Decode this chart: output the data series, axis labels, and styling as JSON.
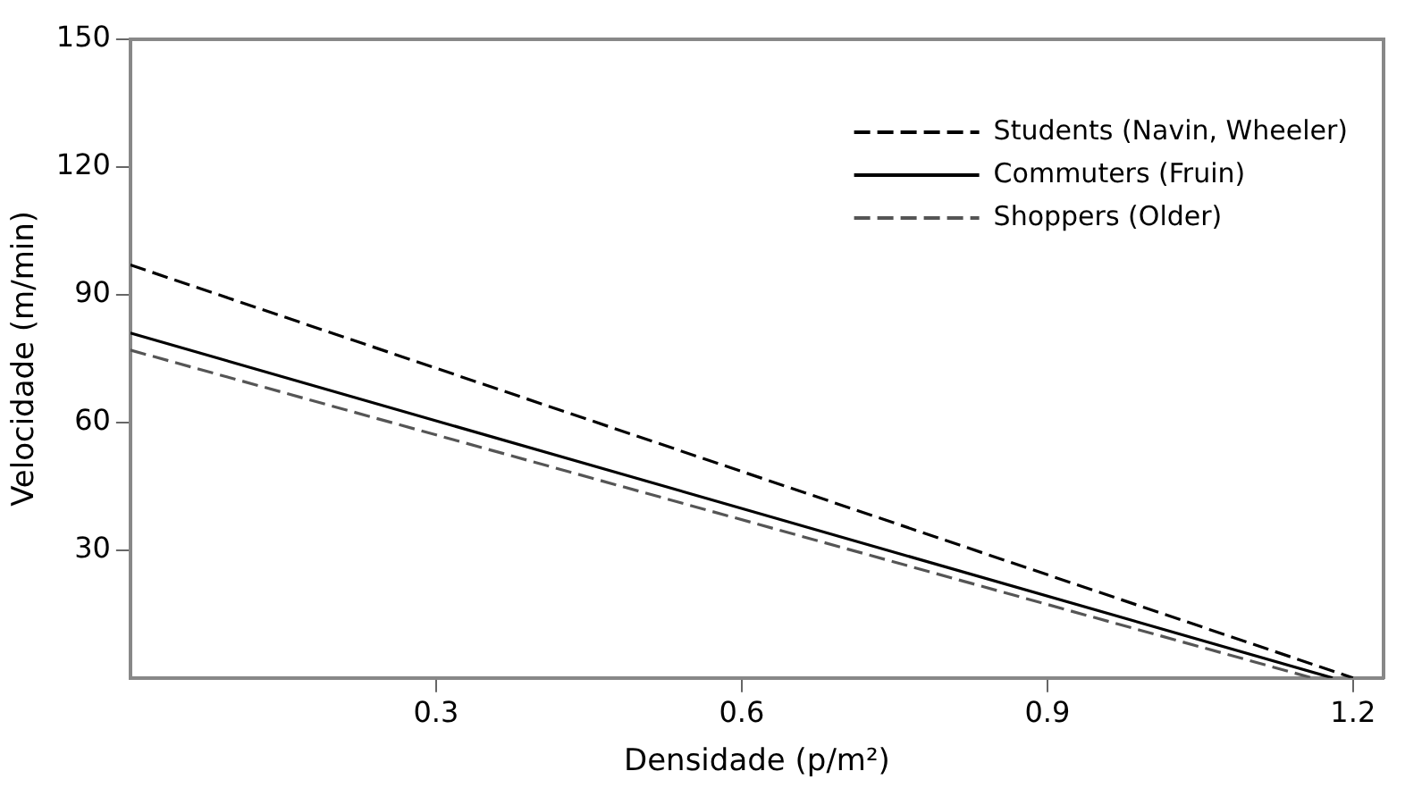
{
  "chart_data": {
    "type": "line",
    "xlabel": "Densidade (p/m²)",
    "ylabel": "Velocidade (m/min)",
    "xlim": [
      0,
      1.23
    ],
    "xticks": [
      0.3,
      0.6,
      0.9,
      1.2
    ],
    "ylim": [
      0,
      150
    ],
    "yticks": [
      30,
      60,
      90,
      120,
      150
    ],
    "legend": "top right",
    "marker": "none",
    "grid": false,
    "series": [
      {
        "name": "Students (Navin, Wheeler)",
        "color": "#000000",
        "line_style": "dashed",
        "x": [
          0,
          1.2
        ],
        "values": [
          97,
          0
        ]
      },
      {
        "name": "Commuters (Fruin)",
        "color": "#000000",
        "line_style": "solid",
        "x": [
          0,
          1.18
        ],
        "values": [
          81,
          0
        ]
      },
      {
        "name": "Shoppers (Older)",
        "color": "#555555",
        "line_style": "dashed",
        "x": [
          0,
          1.16
        ],
        "values": [
          77,
          0
        ]
      }
    ]
  }
}
